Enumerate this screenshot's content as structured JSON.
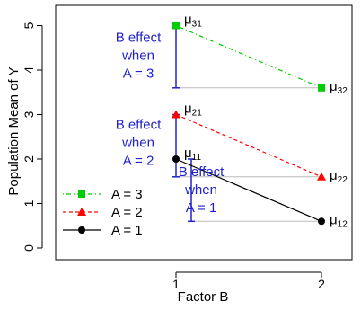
{
  "chart_data": {
    "type": "line",
    "xlabel": "Factor B",
    "ylabel": "Population Mean of Y",
    "x": [
      1,
      2
    ],
    "xticks": [
      1,
      2
    ],
    "xtick_labels": [
      "1",
      "2"
    ],
    "xlim": [
      0.9,
      2.1
    ],
    "yticks": [
      0,
      1,
      2,
      3,
      4,
      5
    ],
    "ytick_labels": [
      "0",
      "1",
      "2",
      "3",
      "4",
      "5"
    ],
    "ylim": [
      0,
      5.2
    ],
    "grid": false,
    "legend_position": "bottom-left",
    "series": [
      {
        "name": "A = 3",
        "values": [
          5,
          3.6
        ],
        "color": "#00cc00",
        "marker": "square",
        "line_style": "dotdash",
        "point_labels": [
          {
            "base": "μ",
            "sub": "31"
          },
          {
            "base": "μ",
            "sub": "32"
          }
        ],
        "effect_label": [
          "B effect",
          "when",
          "A = 3"
        ]
      },
      {
        "name": "A = 2",
        "values": [
          3,
          1.6
        ],
        "color": "#ff0000",
        "marker": "triangle",
        "line_style": "dashed",
        "point_labels": [
          {
            "base": "μ",
            "sub": "21"
          },
          {
            "base": "μ",
            "sub": "22"
          }
        ],
        "effect_label": [
          "B effect",
          "when",
          "A = 2"
        ]
      },
      {
        "name": "A = 1",
        "values": [
          2,
          0.6
        ],
        "color": "#000000",
        "marker": "circle",
        "line_style": "solid",
        "point_labels": [
          {
            "base": "μ",
            "sub": "11"
          },
          {
            "base": "μ",
            "sub": "12"
          }
        ],
        "effect_label": [
          "B effect",
          "when",
          "A = 1"
        ]
      }
    ],
    "annotation_color": "#2222cc",
    "reference_line_color": "#bbbbbb"
  }
}
